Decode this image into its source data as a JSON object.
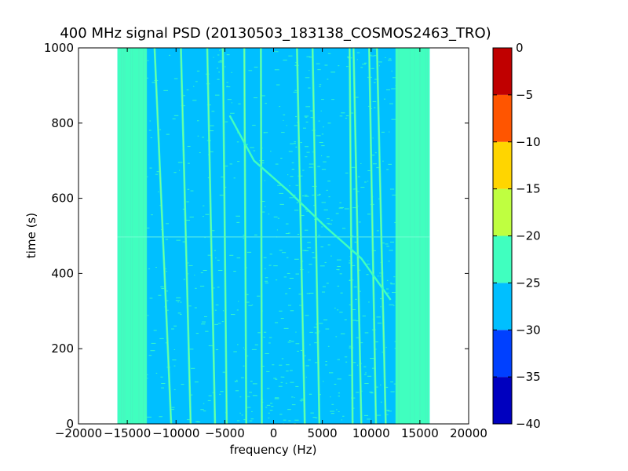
{
  "chart_data": {
    "type": "heatmap",
    "title": "400 MHz signal PSD (20130503_183138_COSMOS2463_TRO)",
    "xlabel": "frequency (Hz)",
    "ylabel": "time (s)",
    "xlim": [
      -20000,
      20000
    ],
    "ylim": [
      0,
      1000
    ],
    "xticks": [
      "−20000",
      "−15000",
      "−10000",
      "−5000",
      "0",
      "5000",
      "10000",
      "15000",
      "20000"
    ],
    "yticks": [
      "0",
      "200",
      "400",
      "600",
      "800",
      "1000"
    ],
    "data_extent": {
      "freq": [
        -16000,
        16000
      ],
      "time": [
        0,
        1000
      ]
    },
    "levels": [
      -40,
      -35,
      -30,
      -25,
      -20,
      -15,
      -10,
      -5,
      0
    ],
    "level_colors": [
      "#0000bf",
      "#0040ff",
      "#00bfff",
      "#40ffbf",
      "#bfff40",
      "#ffd500",
      "#ff5500",
      "#c00000"
    ],
    "colorbar_ticks": [
      "0",
      "−5",
      "−10",
      "−15",
      "−20",
      "−25",
      "−30",
      "−35",
      "−40"
    ],
    "background_level_range": [
      -30,
      -25
    ],
    "edge_bands": [
      {
        "freq_range": [
          -16000,
          -13000
        ],
        "level_range": [
          -25,
          -20
        ]
      },
      {
        "freq_range": [
          12500,
          16000
        ],
        "level_range": [
          -25,
          -20
        ]
      }
    ],
    "traces": [
      {
        "name": "",
        "freq_at_t0": -10500,
        "freq_at_t1000": -12200,
        "level_range": [
          -25,
          -20
        ]
      },
      {
        "name": "",
        "freq_at_t0": -8500,
        "freq_at_t1000": -9500,
        "level_range": [
          -25,
          -20
        ]
      },
      {
        "name": "",
        "freq_at_t0": -6000,
        "freq_at_t1000": -6800,
        "level_range": [
          -25,
          -20
        ]
      },
      {
        "name": "",
        "freq_at_t0": -4800,
        "freq_at_t1000": -5200,
        "level_range": [
          -25,
          -20
        ]
      },
      {
        "name": "",
        "freq_at_t0": -2800,
        "freq_at_t1000": -3000,
        "level_range": [
          -25,
          -20
        ]
      },
      {
        "name": "",
        "freq_at_t0": -1200,
        "freq_at_t1000": -1300,
        "level_range": [
          -25,
          -20
        ]
      },
      {
        "name": "",
        "freq_at_t0": 3200,
        "freq_at_t1000": 2400,
        "level_range": [
          -25,
          -20
        ]
      },
      {
        "name": "",
        "freq_at_t0": 4700,
        "freq_at_t1000": 4000,
        "level_range": [
          -25,
          -20
        ]
      },
      {
        "name": "",
        "freq_at_t0": 8100,
        "freq_at_t1000": 7800,
        "level_range": [
          -25,
          -20
        ]
      },
      {
        "name": "",
        "freq_at_t0": 9000,
        "freq_at_t1000": 8200,
        "level_range": [
          -25,
          -20
        ]
      },
      {
        "name": "",
        "freq_at_t0": 10500,
        "freq_at_t1000": 9800,
        "level_range": [
          -25,
          -20
        ]
      },
      {
        "name": "",
        "freq_at_t0": 11500,
        "freq_at_t1000": 10600,
        "level_range": [
          -25,
          -20
        ]
      }
    ],
    "doppler_trace": {
      "points": [
        {
          "t": 820,
          "f": -4500
        },
        {
          "t": 700,
          "f": -2000
        },
        {
          "t": 620,
          "f": 1500
        },
        {
          "t": 520,
          "f": 5500
        },
        {
          "t": 440,
          "f": 9000
        },
        {
          "t": 330,
          "f": 12000
        }
      ],
      "level_range": [
        -25,
        -20
      ]
    }
  }
}
